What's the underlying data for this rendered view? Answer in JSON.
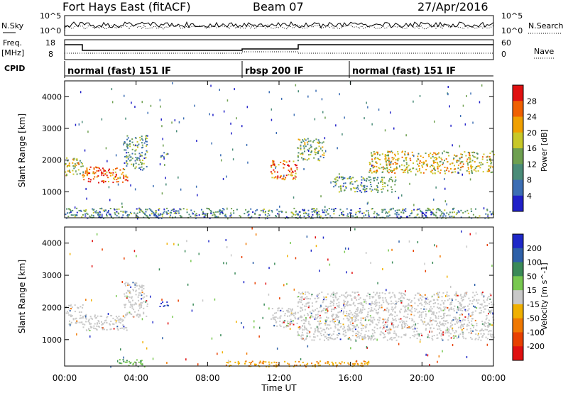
{
  "header": {
    "radar": "Fort Hays East (fitACF)",
    "beam": "Beam 07",
    "date": "27/Apr/2016"
  },
  "labels": {
    "nsky": "N.Sky",
    "freq": "Freq.",
    "mhz": "[MHz]",
    "cpid": "CPID",
    "nsearch": "N.Search",
    "nave": "Nave"
  },
  "strip_ticks": {
    "noise_left": [
      "10^5",
      "10^0"
    ],
    "noise_right": [
      "10^5",
      "10^0"
    ],
    "freq_left": [
      "18",
      "8"
    ],
    "freq_right": [
      "60",
      "0"
    ]
  },
  "cpid_modes": [
    {
      "label": "normal (fast) 151 IF",
      "start_h": 0,
      "end_h": 10
    },
    {
      "label": "rbsp 200 IF",
      "start_h": 10,
      "end_h": 16
    },
    {
      "label": "normal (fast) 151 IF",
      "start_h": 16,
      "end_h": 24
    }
  ],
  "chart_data": [
    {
      "type": "heatmap",
      "title": "",
      "ylabel": "Slant Range [km]",
      "xlabel": "",
      "xlim": [
        0,
        24
      ],
      "ylim": [
        180,
        4500
      ],
      "yticks": [
        "1000",
        "2000",
        "3000",
        "4000"
      ],
      "colorbar": {
        "label": "Power [dB]",
        "ticks": [
          "4",
          "8",
          "12",
          "16",
          "20",
          "24",
          "28"
        ],
        "colors": [
          "#2020c8",
          "#3c6eb4",
          "#4a8c78",
          "#6ea050",
          "#c8c828",
          "#f0a000",
          "#f06000",
          "#e01010"
        ]
      },
      "regions": [
        {
          "t": [
            0.0,
            1.0
          ],
          "r": [
            1500,
            2100
          ],
          "level": 0.55
        },
        {
          "t": [
            1.0,
            3.5
          ],
          "r": [
            1300,
            1800
          ],
          "level": 0.85
        },
        {
          "t": [
            3.3,
            4.6
          ],
          "r": [
            1700,
            2800
          ],
          "level": 0.35
        },
        {
          "t": [
            5.3,
            5.8
          ],
          "r": [
            2100,
            2300
          ],
          "level": 0.3
        },
        {
          "t": [
            11.5,
            13.0
          ],
          "r": [
            1400,
            2000
          ],
          "level": 0.8
        },
        {
          "t": [
            13.0,
            14.5
          ],
          "r": [
            2000,
            2700
          ],
          "level": 0.45
        },
        {
          "t": [
            15.0,
            18.5
          ],
          "r": [
            1000,
            1500
          ],
          "level": 0.35
        },
        {
          "t": [
            17.0,
            24.0
          ],
          "r": [
            1600,
            2300
          ],
          "level": 0.6
        },
        {
          "t": [
            0.0,
            24.0
          ],
          "r": [
            180,
            500
          ],
          "level": 0.3
        }
      ]
    },
    {
      "type": "heatmap",
      "title": "",
      "ylabel": "Slant Range [km]",
      "xlabel": "Time UT",
      "xlim": [
        0,
        24
      ],
      "ylim": [
        180,
        4500
      ],
      "xticks": [
        "00:00",
        "04:00",
        "08:00",
        "12:00",
        "16:00",
        "20:00",
        "00:00"
      ],
      "yticks": [
        "1000",
        "2000",
        "3000",
        "4000"
      ],
      "colorbar": {
        "label": "Velocity [m s^-1]",
        "ticks": [
          "200",
          "100",
          "50",
          "15",
          "-15",
          "-50",
          "-100",
          "-200"
        ],
        "colors": [
          "#1e28c8",
          "#2e60a8",
          "#3a8a58",
          "#78c850",
          "#c8c8c8",
          "#f0b000",
          "#f07800",
          "#e84000",
          "#e01010"
        ]
      },
      "regions": [
        {
          "t": [
            0.0,
            1.0
          ],
          "r": [
            1500,
            2100
          ],
          "level": "gray"
        },
        {
          "t": [
            1.0,
            3.5
          ],
          "r": [
            1300,
            1800
          ],
          "level": "gray"
        },
        {
          "t": [
            3.3,
            4.6
          ],
          "r": [
            1700,
            2800
          ],
          "level": "gray"
        },
        {
          "t": [
            5.3,
            5.8
          ],
          "r": [
            2000,
            2200
          ],
          "level": "blue"
        },
        {
          "t": [
            11.5,
            13.0
          ],
          "r": [
            1400,
            2000
          ],
          "level": "gray"
        },
        {
          "t": [
            13.0,
            24.0
          ],
          "r": [
            1000,
            2500
          ],
          "level": "gray"
        },
        {
          "t": [
            3.0,
            4.5
          ],
          "r": [
            180,
            400
          ],
          "level": "green"
        },
        {
          "t": [
            9.0,
            17.0
          ],
          "r": [
            180,
            350
          ],
          "level": "orange"
        }
      ]
    }
  ]
}
